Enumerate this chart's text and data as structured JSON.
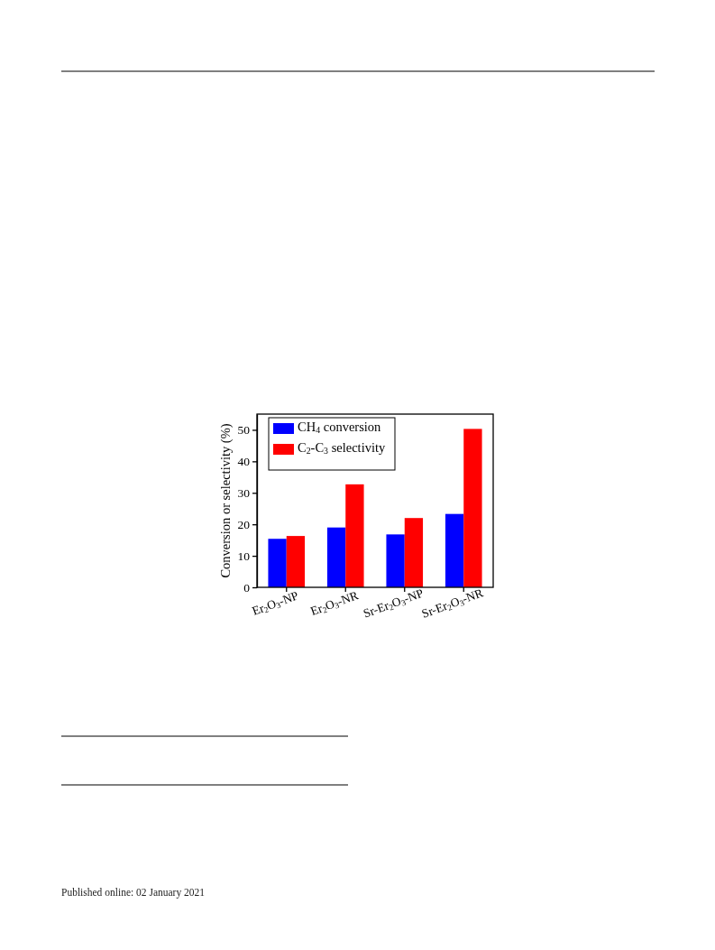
{
  "chart_data": {
    "type": "bar",
    "ylabel": "Conversion or selectivity (%)",
    "categories": [
      "Er$_{2}$O$_{3}$-NP",
      "Er$_{2}$O$_{3}$-NR",
      "Sr-Er$_{2}$O$_{3}$-NP",
      "Sr-Er$_{2}$O$_{3}$-NR"
    ],
    "series": [
      {
        "name": "CH$_{4}$ conversion",
        "color": "#0000ff",
        "values": [
          15.4,
          19.0,
          16.8,
          23.3
        ]
      },
      {
        "name": "C$_{2}$-C$_{3}$ selectivity",
        "color": "#ff0000",
        "values": [
          16.3,
          32.7,
          22.0,
          50.3
        ]
      }
    ],
    "ylim": [
      0,
      55
    ],
    "yticks": [
      0,
      10,
      20,
      30,
      40,
      50
    ],
    "legend": "top left",
    "annotations": [
      "Published online: 02 January 2021"
    ]
  }
}
